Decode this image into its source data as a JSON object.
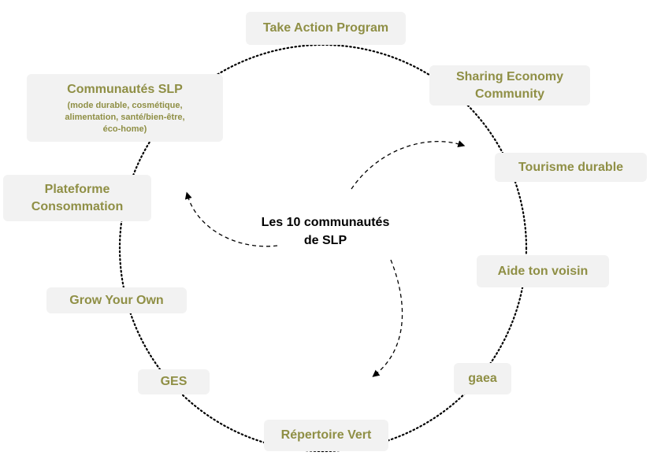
{
  "center": {
    "line1": "Les 10 communautés",
    "line2": "de SLP"
  },
  "nodes": {
    "take_action": {
      "title": "Take Action Program"
    },
    "sharing_economy": {
      "line1": "Sharing Economy",
      "line2": "Community"
    },
    "tourisme": {
      "title": "Tourisme durable"
    },
    "aide_voisin": {
      "title": "Aide ton voisin"
    },
    "gaea": {
      "title": "gaea"
    },
    "repertoire": {
      "title": "Répertoire Vert"
    },
    "ges": {
      "title": "GES"
    },
    "grow": {
      "title": "Grow Your Own"
    },
    "plateforme": {
      "line1": "Plateforme",
      "line2": "Consommation"
    },
    "communautes": {
      "title": "Communautés SLP",
      "sub1": "(mode durable, cosmétique,",
      "sub2": "alimentation, santé/bien-être,",
      "sub3": "éco-home)"
    }
  },
  "colors": {
    "node_text": "#8f8f45",
    "node_bg": "#f2f2f2",
    "connector": "#000000"
  }
}
